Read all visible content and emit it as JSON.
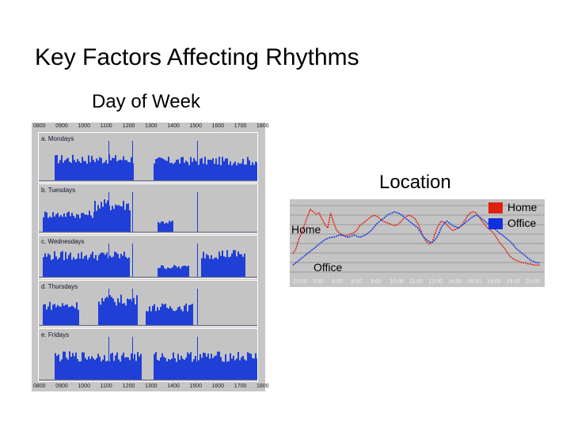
{
  "title": "Key Factors Affecting Rhythms",
  "day_of_week": {
    "heading": "Day of Week",
    "panels": [
      {
        "label": "a. Mondays"
      },
      {
        "label": "b. Tuesdays"
      },
      {
        "label": "c. Wednesdays"
      },
      {
        "label": "d. Thursdays"
      },
      {
        "label": "e. Fridays"
      }
    ],
    "time_ticks": [
      "0800",
      "0900",
      "1000",
      "1100",
      "1200",
      "1300",
      "1400",
      "1500",
      "1600",
      "1700",
      "1800"
    ],
    "bar_color": "#1f3fd6"
  },
  "location": {
    "heading": "Location",
    "series_labels": {
      "home": "Home",
      "office": "Office"
    },
    "time_ticks": [
      "23:00",
      "3:00",
      "6:00",
      "8:00",
      "9:00",
      "10:00",
      "11:00",
      "13:00",
      "14:00",
      "16:00",
      "18:00",
      "19:00",
      "21:00"
    ],
    "legend": [
      {
        "name": "Home",
        "color": "#e02010"
      },
      {
        "name": "Office",
        "color": "#1030e0"
      }
    ]
  },
  "chart_data": {
    "type": "line",
    "title": "Location",
    "series": [
      {
        "name": "Home",
        "color": "#e02010",
        "values": [
          20,
          24,
          32,
          38,
          45,
          52,
          58,
          56,
          54,
          55,
          50,
          45,
          42,
          55,
          47,
          40,
          38,
          36,
          35,
          36,
          37,
          38,
          40,
          44,
          46,
          48,
          50,
          52,
          53,
          52,
          50,
          48,
          47,
          46,
          45,
          44,
          45,
          47,
          50,
          52,
          53,
          52,
          50,
          46,
          40,
          34,
          30,
          28,
          30,
          38,
          44,
          48,
          47,
          45,
          42,
          40,
          41,
          42,
          44,
          48,
          52,
          55,
          56,
          55,
          52,
          48,
          45,
          42,
          40,
          38,
          34,
          30,
          27,
          24,
          20,
          17,
          15,
          14,
          13,
          12,
          12,
          11,
          11,
          10,
          10,
          10
        ]
      },
      {
        "name": "Office",
        "color": "#1030e0",
        "values": [
          10,
          12,
          14,
          16,
          18,
          20,
          22,
          24,
          26,
          28,
          30,
          32,
          33,
          34,
          34,
          35,
          36,
          36,
          35,
          34,
          35,
          36,
          35,
          34,
          35,
          36,
          38,
          40,
          43,
          46,
          48,
          50,
          52,
          54,
          55,
          56,
          55,
          54,
          52,
          50,
          48,
          46,
          44,
          42,
          38,
          34,
          32,
          30,
          30,
          32,
          36,
          42,
          46,
          48,
          46,
          44,
          43,
          42,
          44,
          46,
          48,
          50,
          52,
          53,
          52,
          50,
          48,
          46,
          44,
          42,
          40,
          38,
          36,
          34,
          32,
          30,
          27,
          24,
          22,
          20,
          18,
          16,
          14,
          13,
          12,
          12
        ]
      }
    ],
    "x_ticks": [
      "23:00",
      "3:00",
      "6:00",
      "8:00",
      "9:00",
      "10:00",
      "11:00",
      "13:00",
      "14:00",
      "16:00",
      "18:00",
      "19:00",
      "21:00"
    ]
  }
}
